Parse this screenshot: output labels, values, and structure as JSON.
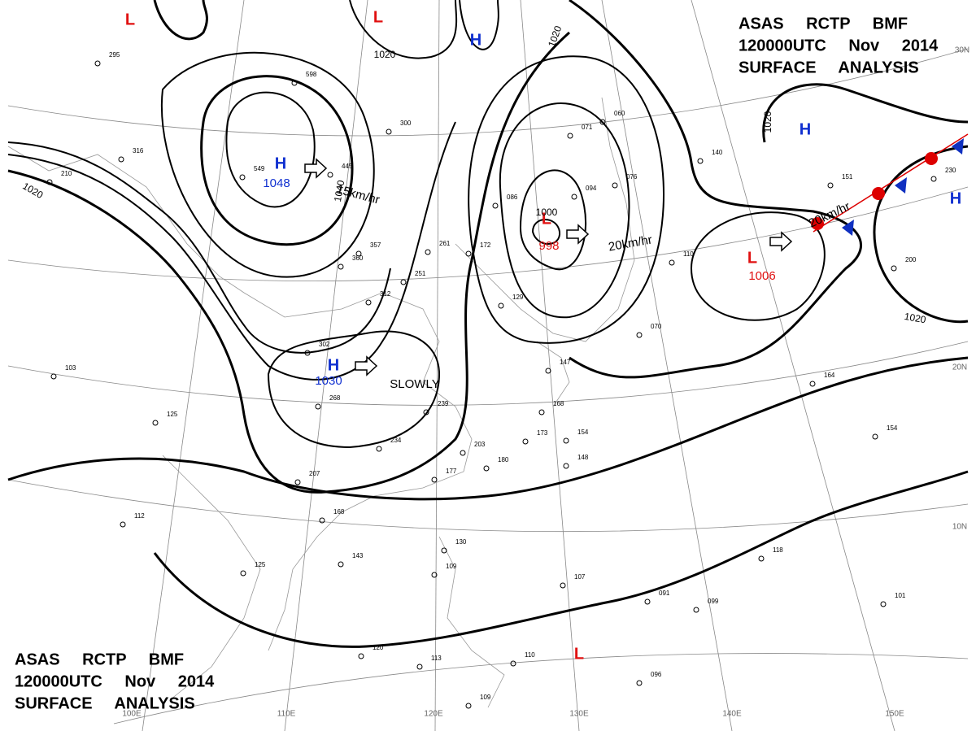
{
  "header_top": [
    "ASAS RCTP BMF",
    "120000UTC Nov 2014",
    "SURFACE ANALYSIS"
  ],
  "header_bottom": [
    "ASAS RCTP BMF",
    "120000UTC Nov 2014",
    "SURFACE ANALYSIS"
  ],
  "pressure_centers": [
    {
      "symbol": "H",
      "value": "1048"
    },
    {
      "symbol": "L",
      "value": "998"
    },
    {
      "symbol": "H",
      "value": "1030"
    },
    {
      "symbol": "L",
      "value": "1006"
    },
    {
      "symbol": "L"
    },
    {
      "symbol": "L"
    },
    {
      "symbol": "H"
    },
    {
      "symbol": "H"
    },
    {
      "symbol": "H"
    },
    {
      "symbol": "L"
    }
  ],
  "isobar_labels": [
    "1020",
    "1020",
    "1020",
    "1020",
    "1020",
    "1000",
    "1040"
  ],
  "motion_labels": [
    "15km/hr",
    "20km/hr",
    "SLOWLY",
    "20km/hr"
  ],
  "longitude_labels": [
    "100E",
    "110E",
    "120E",
    "130E",
    "140E",
    "150E"
  ],
  "latitude_labels": [
    "30N",
    "20N",
    "10N"
  ],
  "stations": [
    "549",
    "445",
    "300",
    "357",
    "360",
    "312",
    "302",
    "268",
    "239",
    "234",
    "207",
    "168",
    "203",
    "180",
    "177",
    "173",
    "154",
    "148",
    "143",
    "125",
    "112",
    "125",
    "103",
    "130",
    "109",
    "107",
    "118",
    "091",
    "099",
    "101",
    "096",
    "120",
    "113",
    "110",
    "109",
    "164",
    "140",
    "110",
    "200",
    "230",
    "151",
    "154",
    "070",
    "060",
    "071",
    "094",
    "076",
    "086",
    "172",
    "261",
    "251",
    "129",
    "147",
    "168",
    "316",
    "210",
    "295",
    "598"
  ]
}
